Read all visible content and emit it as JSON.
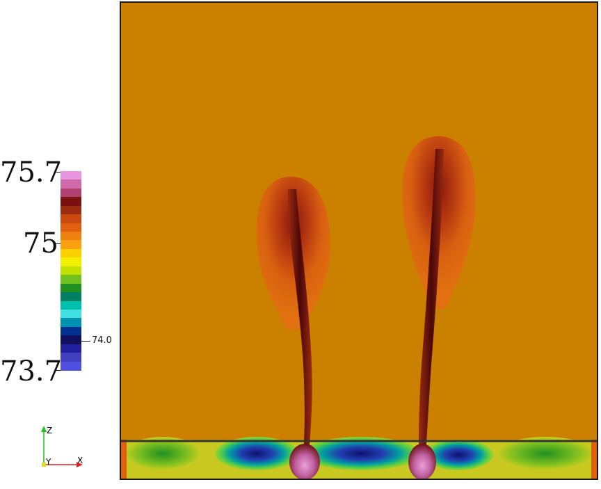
{
  "colorbar": {
    "max_label": "75.7",
    "mid_label": "75",
    "min_label": "73.7",
    "annotation_label": "74.0",
    "colors": [
      "#e896e0",
      "#d06aa8",
      "#b04070",
      "#7a1010",
      "#9a2a10",
      "#c84a10",
      "#e06010",
      "#f08010",
      "#f8a010",
      "#ffd000",
      "#f0f000",
      "#c0e000",
      "#70c020",
      "#209020",
      "#008060",
      "#00c0b0",
      "#40e0e0",
      "#0090b0",
      "#003090",
      "#101060",
      "#2020a0",
      "#4040c0",
      "#5050e0"
    ]
  },
  "triad": {
    "z_label": "Z",
    "y_label": "Y",
    "x_label": "X"
  },
  "field": {
    "background_color": "#cc8000",
    "interface_color": "#333333"
  }
}
